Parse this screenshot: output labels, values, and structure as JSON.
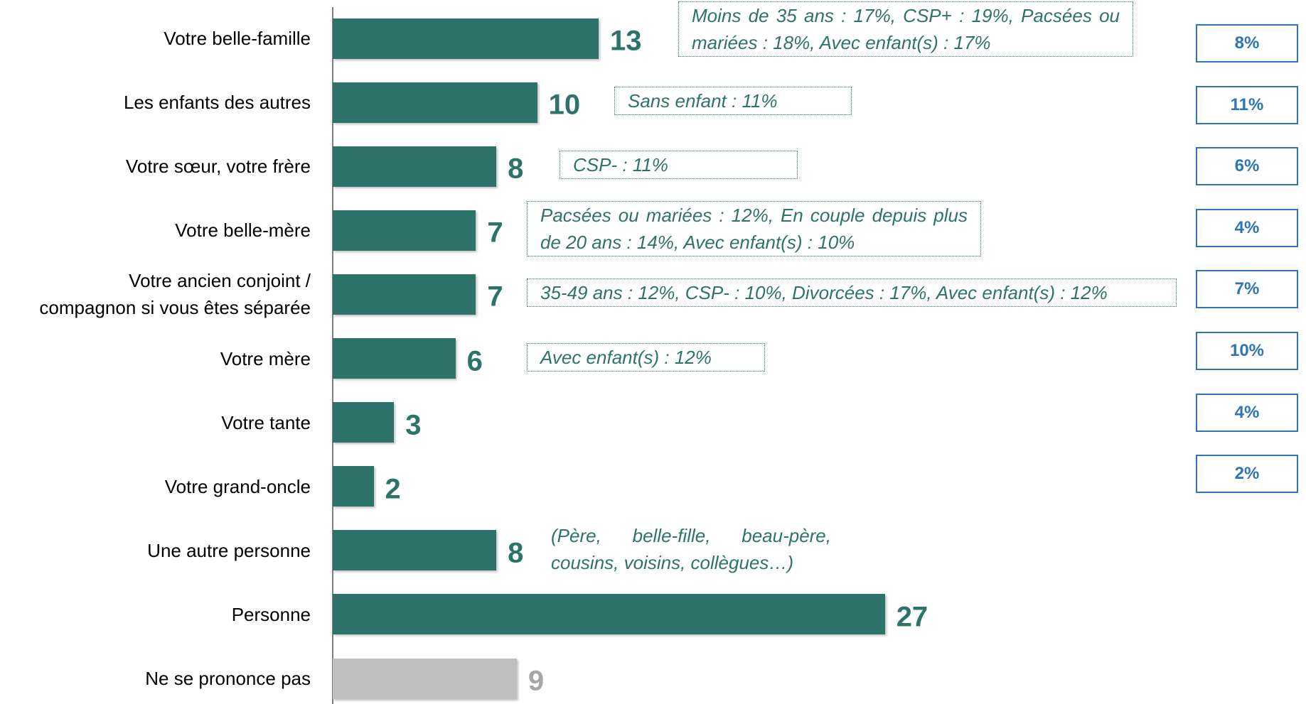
{
  "chart_data": {
    "type": "hbar",
    "categories": [
      "Votre belle-famille",
      "Les enfants des autres",
      "Votre sœur, votre frère",
      "Votre belle-mère",
      "Votre ancien conjoint /\ncompagnon si vous êtes séparée",
      "Votre mère",
      "Votre tante",
      "Votre grand-oncle",
      "Une autre personne",
      "Personne",
      "Ne se prononce pas"
    ],
    "values": [
      13,
      10,
      8,
      7,
      7,
      6,
      3,
      2,
      8,
      27,
      9
    ],
    "colors": [
      "#2e7369",
      "#2e7369",
      "#2e7369",
      "#2e7369",
      "#2e7369",
      "#2e7369",
      "#2e7369",
      "#2e7369",
      "#2e7369",
      "#2e7369",
      "#bfbfbf"
    ],
    "label_colors": [
      "#2e7369",
      "#2e7369",
      "#2e7369",
      "#2e7369",
      "#2e7369",
      "#2e7369",
      "#2e7369",
      "#2e7369",
      "#2e7369",
      "#2e7369",
      "#a6a6a6"
    ],
    "xlim": [
      0,
      30
    ],
    "annotations": [
      "Moins de 35 ans : 17%, CSP+ : 19%, Pacsées ou mariées : 18%, Avec enfant(s) : 17%",
      "Sans enfant : 11%",
      "CSP- : 11%",
      "Pacsées ou mariées : 12%, En couple depuis plus de 20 ans : 14%, Avec enfant(s) : 10%",
      "35-49 ans : 12%, CSP- : 10%, Divorcées : 17%, Avec enfant(s) : 12%",
      "Avec enfant(s) : 12%",
      null,
      null,
      "(Père, belle-fille, beau-père, cousins, voisins, collègues…)",
      null,
      null
    ],
    "annotation_boxed": [
      true,
      true,
      true,
      true,
      true,
      true,
      false,
      false,
      false,
      false,
      false
    ],
    "comparison": {
      "values": [
        8,
        11,
        6,
        4,
        7,
        10,
        4,
        2
      ],
      "value_labels": [
        "8%",
        "11%",
        "6%",
        "4%",
        "7%",
        "10%",
        "4%",
        "2%"
      ]
    }
  }
}
